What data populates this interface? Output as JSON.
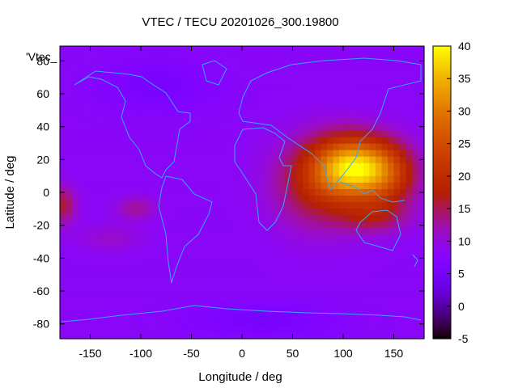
{
  "chart_data": {
    "type": "heatmap",
    "title": "VTEC / TECU 20201026_300.19800",
    "xlabel": "Longitude / deg",
    "ylabel": "Latitude / deg",
    "legend_label": "'Vtec_",
    "xlim": [
      -180,
      180
    ],
    "ylim": [
      -89,
      89
    ],
    "x_ticks": [
      "-150",
      "-100",
      "-50",
      "0",
      "50",
      "100",
      "150"
    ],
    "y_ticks": [
      "-80",
      "-60",
      "-40",
      "-20",
      "0",
      "20",
      "40",
      "60",
      "80"
    ],
    "colorbar": {
      "range": [
        -5,
        40
      ],
      "ticks": [
        "-5",
        "0",
        "5",
        "10",
        "15",
        "20",
        "25",
        "30",
        "35",
        "40"
      ]
    },
    "background_value": 8,
    "features": [
      {
        "lon": 110,
        "lat": 15,
        "slon": 38,
        "slat": 18,
        "amp": 26
      },
      {
        "lon": 75,
        "lat": 5,
        "slon": 45,
        "slat": 28,
        "amp": 9
      },
      {
        "lon": 145,
        "lat": 10,
        "slon": 30,
        "slat": 20,
        "amp": 10
      },
      {
        "lon": 130,
        "lat": -15,
        "slon": 35,
        "slat": 10,
        "amp": 6
      },
      {
        "lon": -178,
        "lat": -8,
        "slon": 14,
        "slat": 12,
        "amp": 8
      },
      {
        "lon": -105,
        "lat": -10,
        "slon": 20,
        "slat": 7,
        "amp": 5
      },
      {
        "lon": -130,
        "lat": -28,
        "slon": 30,
        "slat": 8,
        "amp": 3
      },
      {
        "lon": -85,
        "lat": 65,
        "slon": 55,
        "slat": 15,
        "amp": -3
      },
      {
        "lon": 20,
        "lat": -78,
        "slon": 70,
        "slat": 10,
        "amp": -3
      }
    ]
  }
}
